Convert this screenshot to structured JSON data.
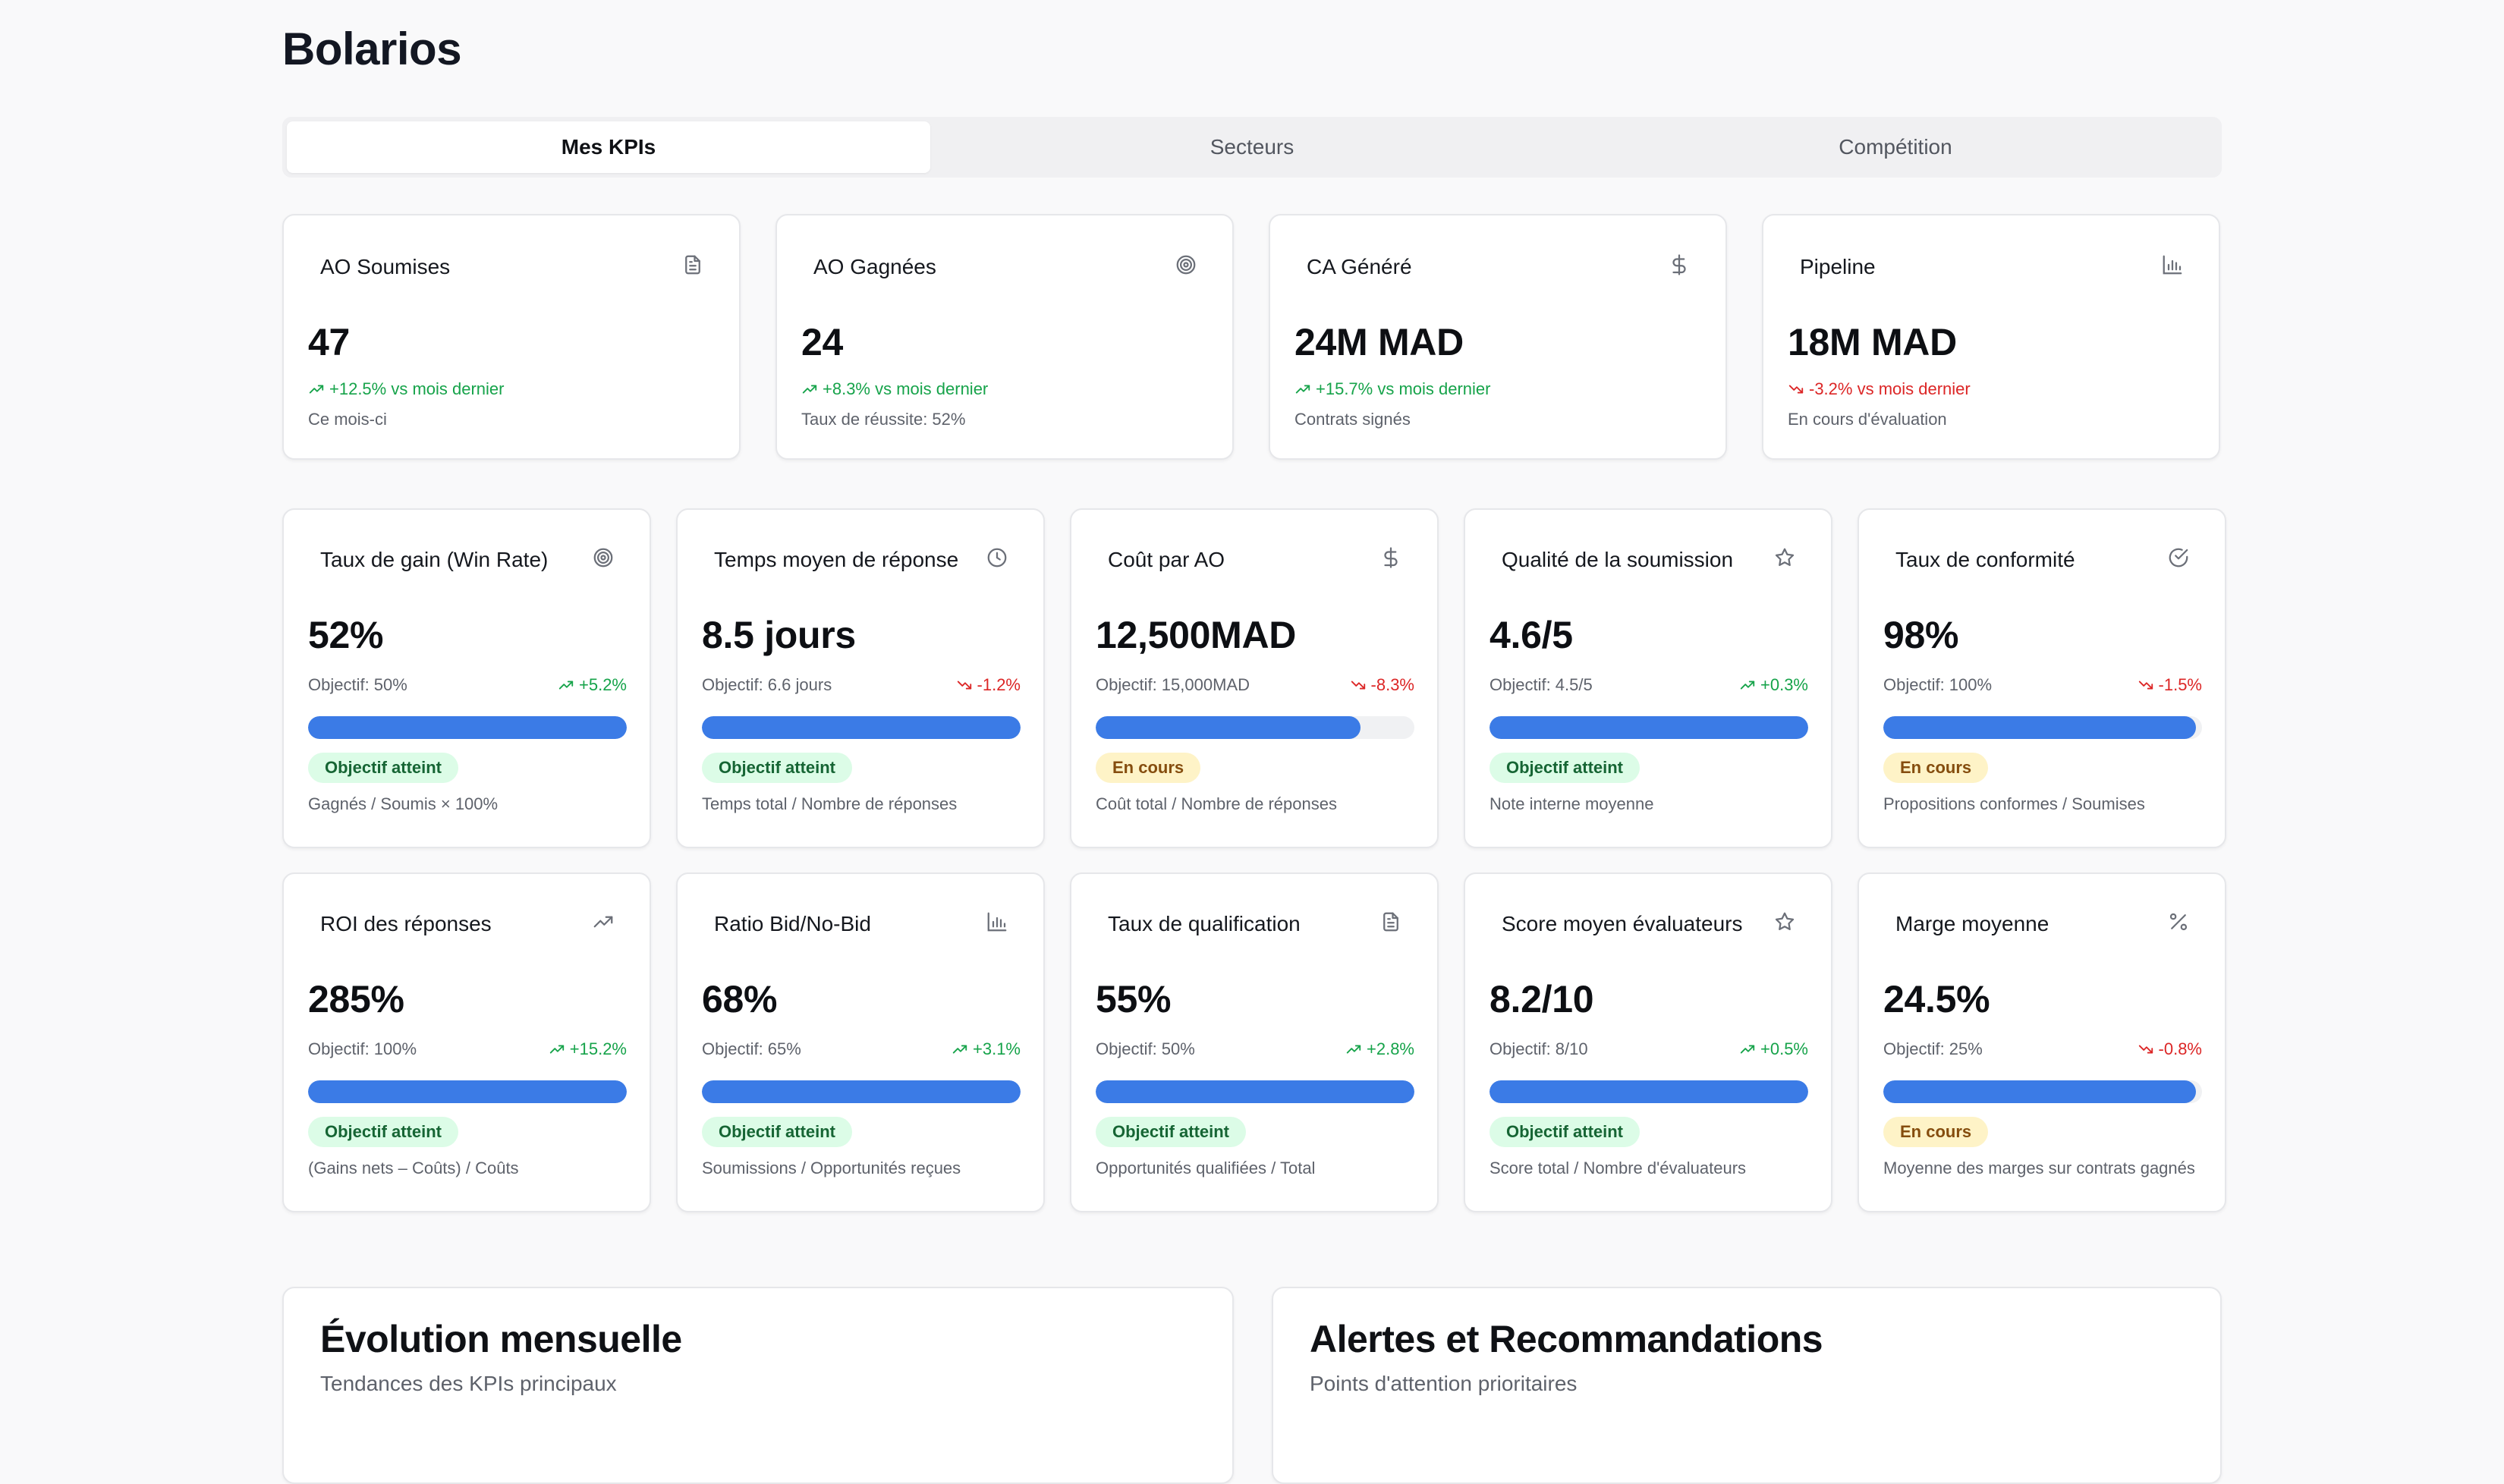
{
  "app": {
    "title": "Bolarios"
  },
  "tabs": [
    {
      "label": "Mes KPIs",
      "active": true
    },
    {
      "label": "Secteurs",
      "active": false
    },
    {
      "label": "Compétition",
      "active": false
    }
  ],
  "summary": [
    {
      "title": "AO Soumises",
      "icon": "document-icon",
      "value": "47",
      "trend": "+12.5% vs mois dernier",
      "direction": "up",
      "note": "Ce mois-ci"
    },
    {
      "title": "AO Gagnées",
      "icon": "target-icon",
      "value": "24",
      "trend": "+8.3% vs mois dernier",
      "direction": "up",
      "note": "Taux de réussite: 52%"
    },
    {
      "title": "CA Généré",
      "icon": "dollar-icon",
      "value": "24M MAD",
      "trend": "+15.7% vs mois dernier",
      "direction": "up",
      "note": "Contrats signés"
    },
    {
      "title": "Pipeline",
      "icon": "bar-chart-icon",
      "value": "18M MAD",
      "trend": "-3.2% vs mois dernier",
      "direction": "down",
      "note": "En cours d'évaluation"
    }
  ],
  "kpis": [
    {
      "title": "Taux de gain (Win Rate)",
      "icon": "target-icon",
      "value": "52%",
      "objective": "Objectif: 50%",
      "delta": "+5.2%",
      "direction": "up",
      "progress": 100,
      "status": "Objectif atteint",
      "status_type": "ok",
      "formula": "Gagnés / Soumis × 100%"
    },
    {
      "title": "Temps moyen de réponse",
      "icon": "clock-icon",
      "value": "8.5 jours",
      "objective": "Objectif: 6.6 jours",
      "delta": "-1.2%",
      "direction": "down",
      "progress": 100,
      "status": "Objectif atteint",
      "status_type": "ok",
      "formula": "Temps total / Nombre de réponses"
    },
    {
      "title": "Coût par AO",
      "icon": "dollar-icon",
      "value": "12,500MAD",
      "objective": "Objectif: 15,000MAD",
      "delta": "-8.3%",
      "direction": "down",
      "progress": 83,
      "status": "En cours",
      "status_type": "prog",
      "formula": "Coût total / Nombre de réponses"
    },
    {
      "title": "Qualité de la soumission",
      "icon": "star-icon",
      "value": "4.6/5",
      "objective": "Objectif: 4.5/5",
      "delta": "+0.3%",
      "direction": "up",
      "progress": 100,
      "status": "Objectif atteint",
      "status_type": "ok",
      "formula": "Note interne moyenne"
    },
    {
      "title": "Taux de conformité",
      "icon": "check-circle-icon",
      "value": "98%",
      "objective": "Objectif: 100%",
      "delta": "-1.5%",
      "direction": "down",
      "progress": 98,
      "status": "En cours",
      "status_type": "prog",
      "formula": "Propositions conformes / Soumises"
    },
    {
      "title": "ROI des réponses",
      "icon": "trending-up-icon",
      "value": "285%",
      "objective": "Objectif: 100%",
      "delta": "+15.2%",
      "direction": "up",
      "progress": 100,
      "status": "Objectif atteint",
      "status_type": "ok",
      "formula": "(Gains nets – Coûts) / Coûts"
    },
    {
      "title": "Ratio Bid/No-Bid",
      "icon": "bar-chart-icon",
      "value": "68%",
      "objective": "Objectif: 65%",
      "delta": "+3.1%",
      "direction": "up",
      "progress": 100,
      "status": "Objectif atteint",
      "status_type": "ok",
      "formula": "Soumissions / Opportunités reçues"
    },
    {
      "title": "Taux de qualification",
      "icon": "document-icon",
      "value": "55%",
      "objective": "Objectif: 50%",
      "delta": "+2.8%",
      "direction": "up",
      "progress": 100,
      "status": "Objectif atteint",
      "status_type": "ok",
      "formula": "Opportunités qualifiées / Total"
    },
    {
      "title": "Score moyen évaluateurs",
      "icon": "star-icon",
      "value": "8.2/10",
      "objective": "Objectif: 8/10",
      "delta": "+0.5%",
      "direction": "up",
      "progress": 100,
      "status": "Objectif atteint",
      "status_type": "ok",
      "formula": "Score total / Nombre d'évaluateurs"
    },
    {
      "title": "Marge moyenne",
      "icon": "percent-icon",
      "value": "24.5%",
      "objective": "Objectif: 25%",
      "delta": "-0.8%",
      "direction": "down",
      "progress": 98,
      "status": "En cours",
      "status_type": "prog",
      "formula": "Moyenne des marges sur contrats gagnés"
    }
  ],
  "panels": {
    "evolution": {
      "title": "Évolution mensuelle",
      "subtitle": "Tendances des KPIs principaux"
    },
    "alerts": {
      "title": "Alertes et Recommandations",
      "subtitle": "Points d'attention prioritaires"
    }
  },
  "colors": {
    "accent": "#3b7be6",
    "up": "#16a34a",
    "down": "#dc2626"
  }
}
